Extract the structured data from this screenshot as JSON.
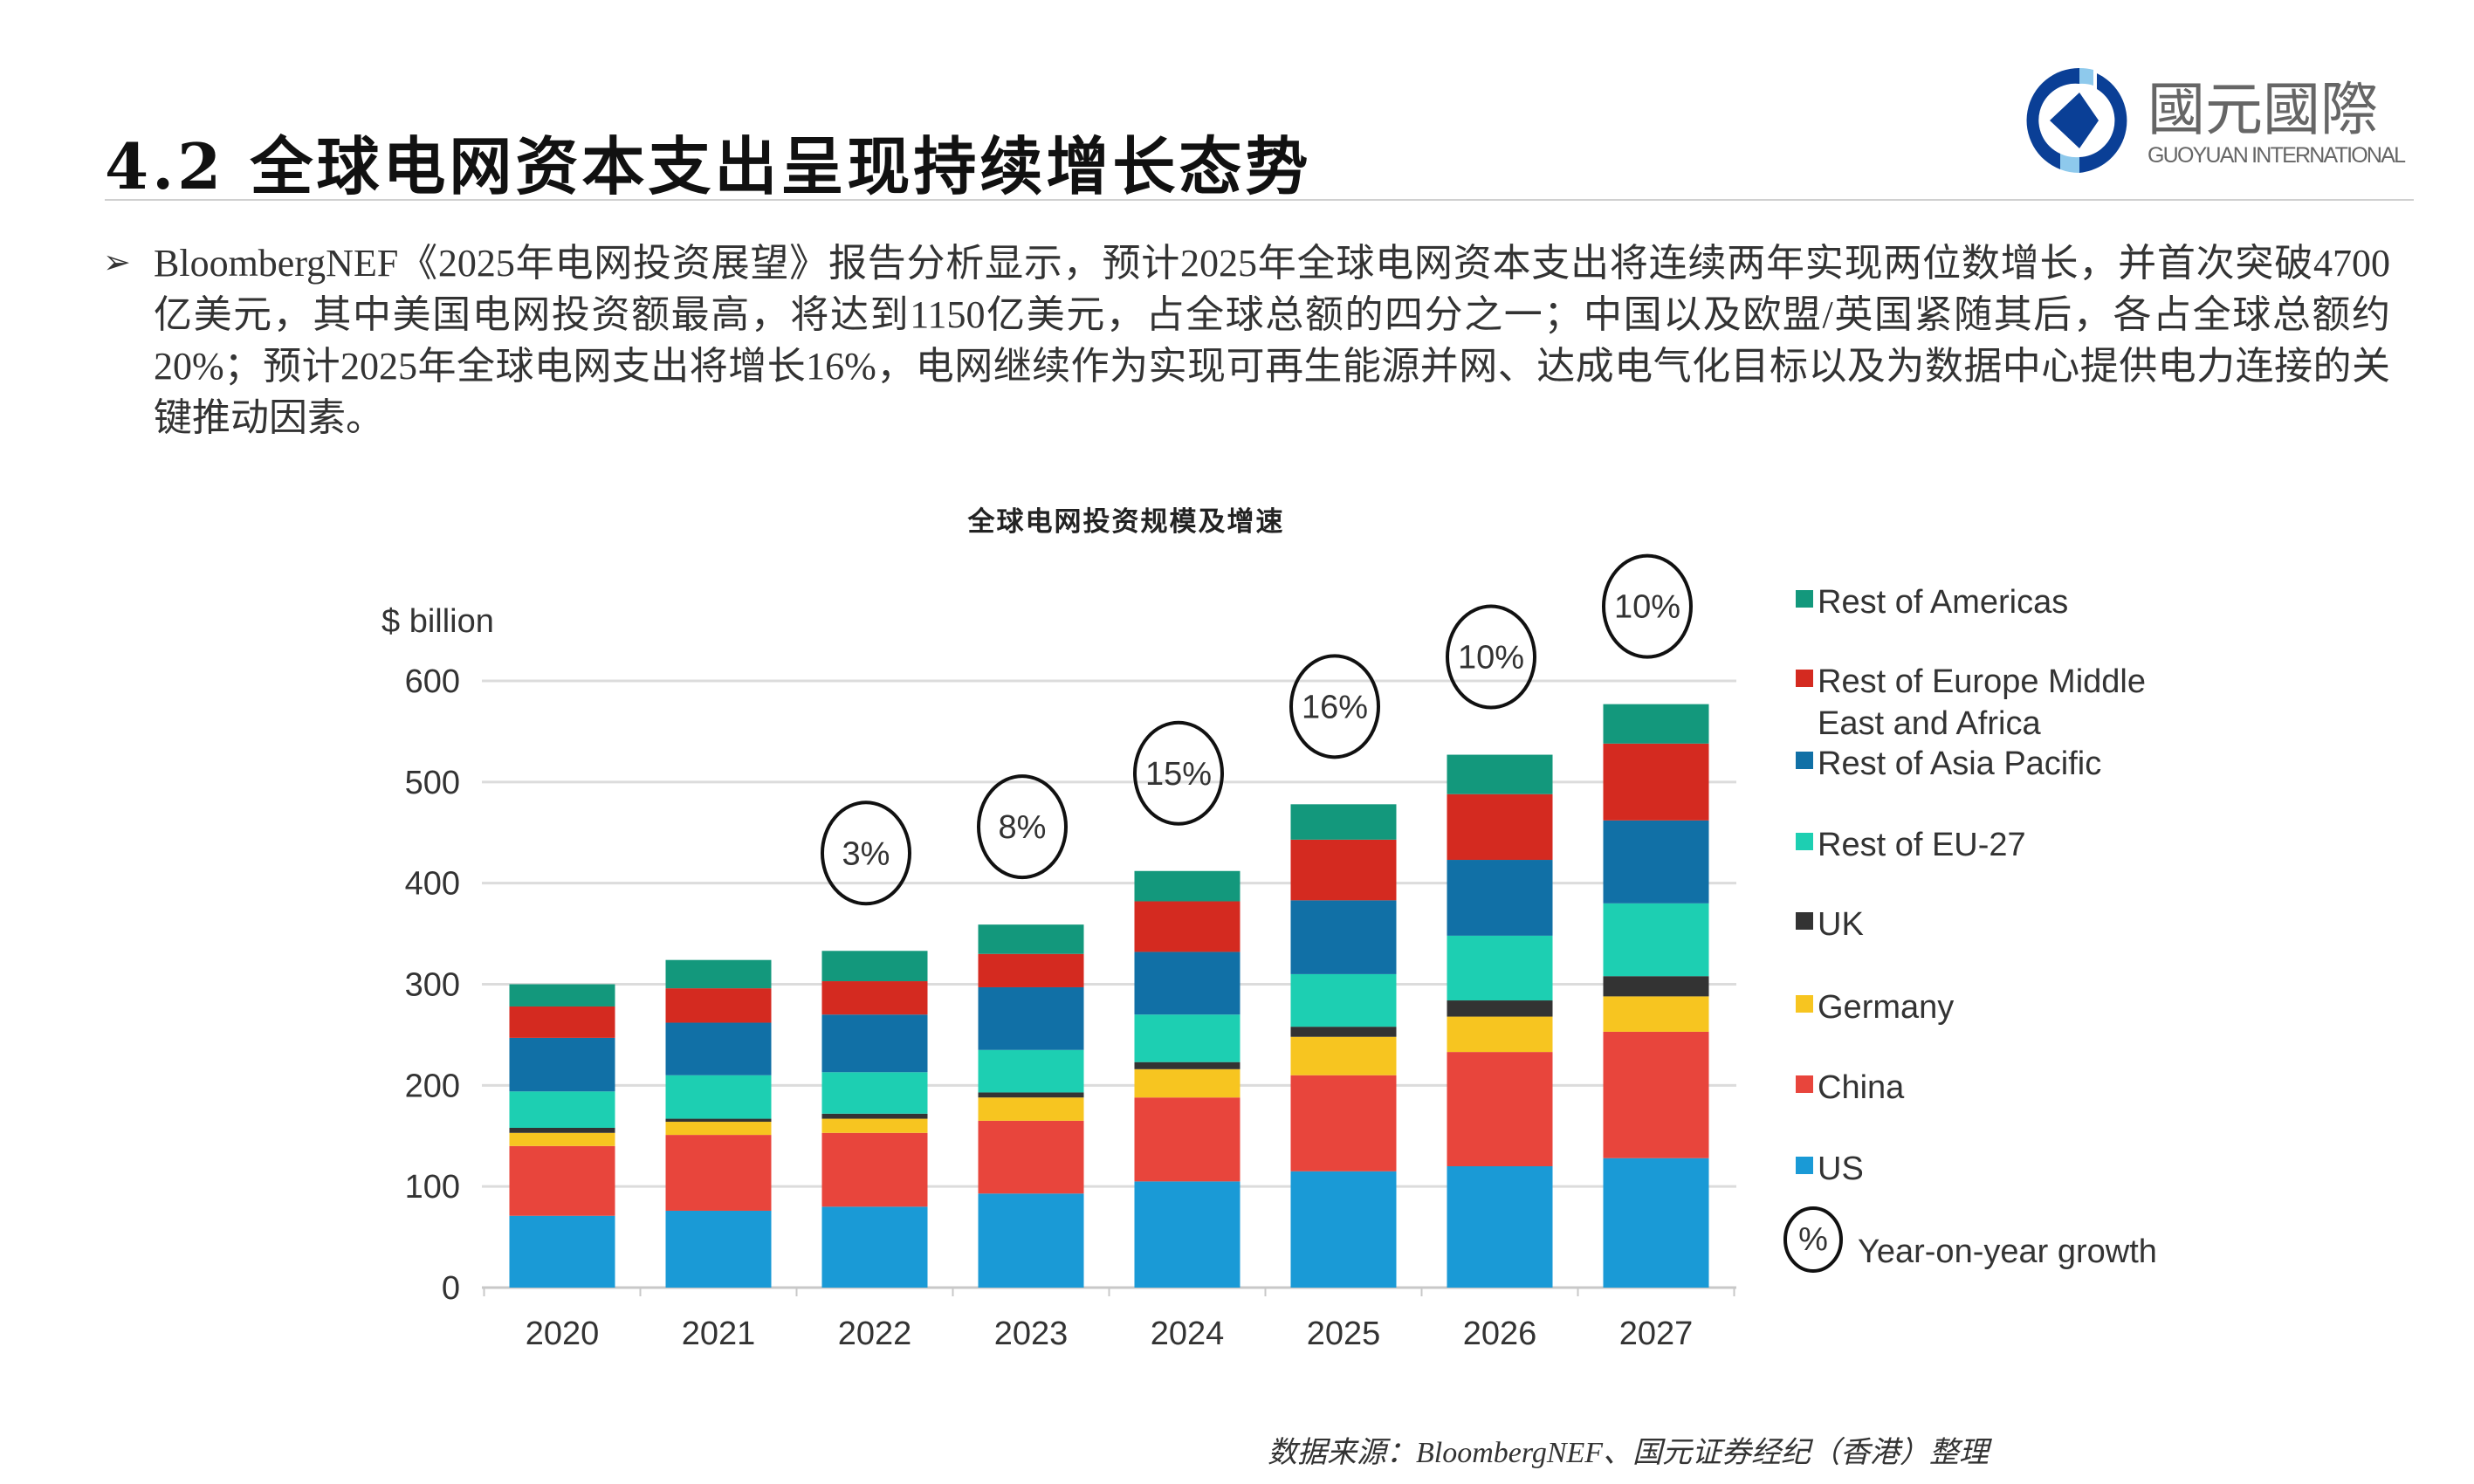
{
  "header": {
    "title": "4.2 全球电网资本支出呈现持续增长态势",
    "logo": {
      "cn": "國元國際",
      "en": "GUOYUAN INTERNATIONAL",
      "colors": {
        "dark_blue": "#0a3f96",
        "light_blue": "#8ec9ec",
        "text_gray": "#666666"
      }
    }
  },
  "bullet": {
    "icon": "arrow-bullet-icon",
    "text": "BloombergNEF《2025年电网投资展望》报告分析显示，预计2025年全球电网资本支出将连续两年实现两位数增长，并首次突破4700亿美元，其中美国电网投资额最高，将达到1150亿美元，占全球总额的四分之一；中国以及欧盟/英国紧随其后，各占全球总额约20%；预计2025年全球电网支出将增长16%，电网继续作为实现可再生能源并网、达成电气化目标以及为数据中心提供电力连接的关键推动因素。"
  },
  "chart_title": "全球电网投资规模及增速",
  "source": "数据来源：BloombergNEF、国元证券经纪（香港）整理",
  "chart_data": {
    "type": "bar",
    "stacked": true,
    "ylabel": "$ billion",
    "ylim": [
      0,
      600
    ],
    "yticks": [
      0,
      100,
      200,
      300,
      400,
      500,
      600
    ],
    "grid": true,
    "legend_position": "right",
    "categories": [
      "2020",
      "2021",
      "2022",
      "2023",
      "2024",
      "2025",
      "2026",
      "2027"
    ],
    "series": [
      {
        "name": "US",
        "color": "#1a9ad6",
        "values": [
          71,
          76,
          80,
          93,
          105,
          115,
          120,
          128
        ]
      },
      {
        "name": "China",
        "color": "#e8453c",
        "values": [
          69,
          75,
          73,
          72,
          83,
          95,
          113,
          125
        ]
      },
      {
        "name": "Germany",
        "color": "#f7c520",
        "values": [
          13,
          13,
          14,
          23,
          28,
          38,
          35,
          35
        ]
      },
      {
        "name": "UK",
        "color": "#333333",
        "values": [
          5,
          3,
          5,
          5,
          7,
          10,
          16,
          20
        ]
      },
      {
        "name": "Rest of EU-27",
        "color": "#1dcfb2",
        "values": [
          36,
          43,
          41,
          42,
          47,
          52,
          64,
          72
        ]
      },
      {
        "name": "Rest of Asia Pacific",
        "color": "#1170a6",
        "values": [
          53,
          52,
          57,
          62,
          62,
          73,
          75,
          82
        ]
      },
      {
        "name": "Rest of Europe Middle East and Africa",
        "color": "#d42a20",
        "values": [
          31,
          34,
          33,
          33,
          50,
          60,
          65,
          76
        ]
      },
      {
        "name": "Rest of Americas",
        "color": "#13987c",
        "values": [
          22,
          28,
          30,
          29,
          30,
          35,
          39,
          39
        ]
      }
    ],
    "legend_order": [
      {
        "label_lines": [
          "Rest of Americas"
        ],
        "series": 7
      },
      {
        "label_lines": [
          "Rest of Europe Middle",
          "East and Africa"
        ],
        "series": 6
      },
      {
        "label_lines": [
          "Rest of Asia Pacific"
        ],
        "series": 5
      },
      {
        "label_lines": [
          "Rest of EU-27"
        ],
        "series": 4
      },
      {
        "label_lines": [
          "UK"
        ],
        "series": 3
      },
      {
        "label_lines": [
          "Germany"
        ],
        "series": 2
      },
      {
        "label_lines": [
          "China"
        ],
        "series": 1
      },
      {
        "label_lines": [
          "US"
        ],
        "series": 0
      }
    ],
    "growth_annotations": [
      {
        "category": "2022",
        "label": "3%"
      },
      {
        "category": "2023",
        "label": "8%"
      },
      {
        "category": "2024",
        "label": "15%"
      },
      {
        "category": "2025",
        "label": "16%"
      },
      {
        "category": "2026",
        "label": "10%"
      },
      {
        "category": "2027",
        "label": "10%"
      }
    ],
    "growth_legend": {
      "symbol": "%",
      "label": "Year-on-year growth"
    }
  }
}
